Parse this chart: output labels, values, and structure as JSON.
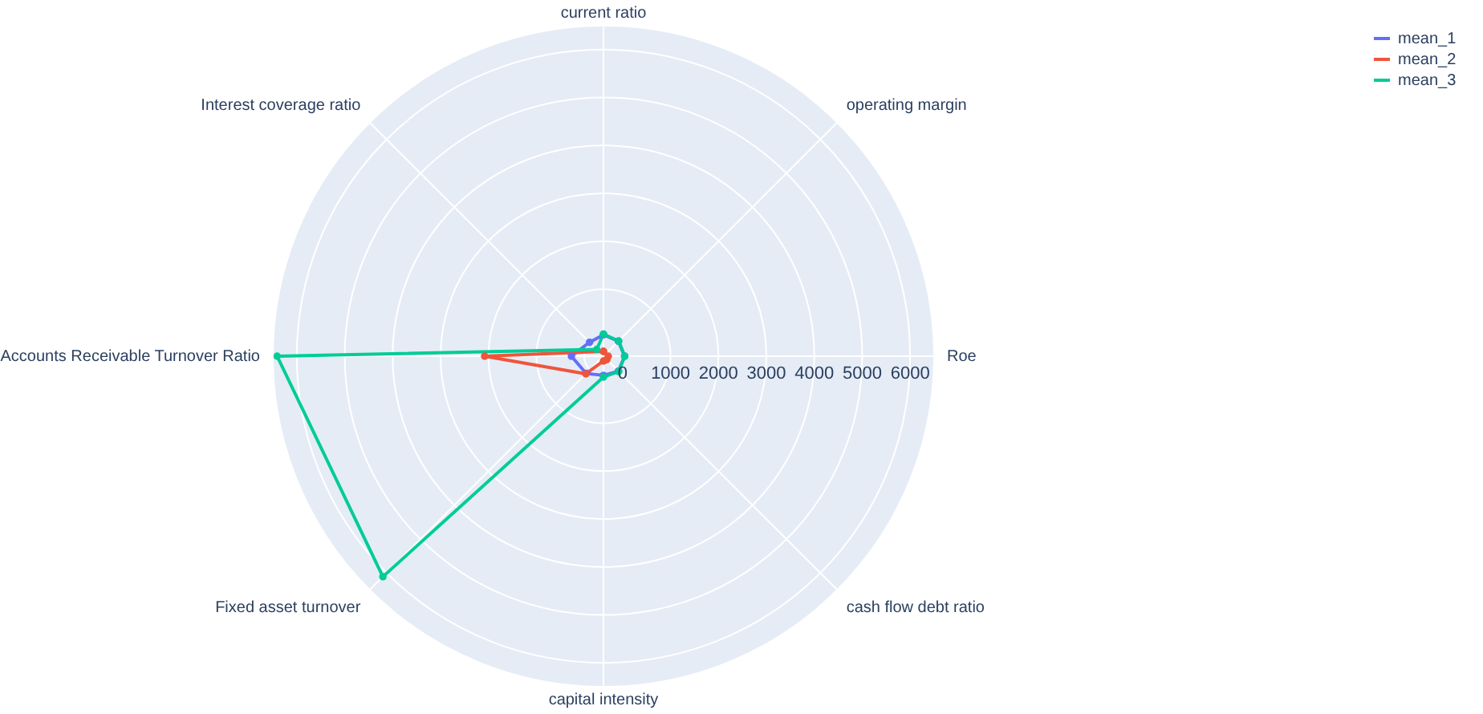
{
  "chart_data": {
    "type": "radar",
    "categories": [
      "current ratio",
      "operating margin",
      "Roe",
      "cash flow debt ratio",
      "capital intensity",
      "Fixed asset turnover",
      "Accounts Receivable Turnover Ratio",
      "Interest coverage ratio"
    ],
    "series": [
      {
        "name": "mean_1",
        "color": "#636efa",
        "values": [
          50,
          40,
          40,
          40,
          0,
          110,
          270,
          10
        ]
      },
      {
        "name": "mean_2",
        "color": "#ef553b",
        "values": [
          -300,
          null,
          -300,
          -300,
          -300,
          120,
          2080,
          null
        ]
      },
      {
        "name": "mean_3",
        "color": "#00cc96",
        "values": [
          60,
          50,
          45,
          50,
          35,
          6110,
          6410,
          -200
        ]
      }
    ],
    "ylim": [
      -400,
      6500
    ],
    "yticks": [
      0,
      1000,
      2000,
      3000,
      4000,
      5000,
      6000
    ],
    "grid": true,
    "legend": "top right",
    "marker": "circle"
  }
}
